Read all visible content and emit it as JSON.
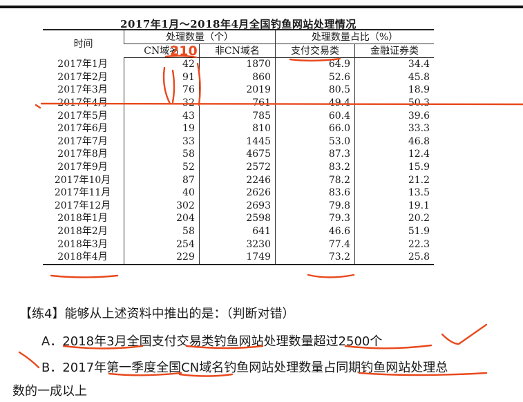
{
  "table": {
    "title": "2017年1月～2018年4月全国钓鱼网站处理情况",
    "headers": {
      "time": "时间",
      "group_count": "处理数量（个）",
      "group_share": "处理数量占比（%）",
      "cn": "CN域名",
      "non_cn": "非CN域名",
      "payment": "支付交易类",
      "finance": "金融证券类"
    },
    "rows": [
      {
        "time": "2017年1月",
        "cn": "42",
        "non_cn": "1870",
        "payment": "64.9",
        "finance": "34.4"
      },
      {
        "time": "2017年2月",
        "cn": "91",
        "non_cn": "860",
        "payment": "52.6",
        "finance": "45.8"
      },
      {
        "time": "2017年3月",
        "cn": "76",
        "non_cn": "2019",
        "payment": "80.5",
        "finance": "18.9"
      },
      {
        "time": "2017年4月",
        "cn": "32",
        "non_cn": "761",
        "payment": "49.4",
        "finance": "50.3"
      },
      {
        "time": "2017年5月",
        "cn": "43",
        "non_cn": "785",
        "payment": "60.4",
        "finance": "39.6"
      },
      {
        "time": "2017年6月",
        "cn": "19",
        "non_cn": "810",
        "payment": "66.0",
        "finance": "33.3"
      },
      {
        "time": "2017年7月",
        "cn": "33",
        "non_cn": "1445",
        "payment": "53.0",
        "finance": "46.8"
      },
      {
        "time": "2017年8月",
        "cn": "58",
        "non_cn": "4675",
        "payment": "87.3",
        "finance": "12.4"
      },
      {
        "time": "2017年9月",
        "cn": "52",
        "non_cn": "2572",
        "payment": "83.2",
        "finance": "15.9"
      },
      {
        "time": "2017年10月",
        "cn": "87",
        "non_cn": "2246",
        "payment": "78.2",
        "finance": "21.2"
      },
      {
        "time": "2017年11月",
        "cn": "40",
        "non_cn": "2626",
        "payment": "83.6",
        "finance": "13.5"
      },
      {
        "time": "2017年12月",
        "cn": "302",
        "non_cn": "2693",
        "payment": "79.8",
        "finance": "19.1"
      },
      {
        "time": "2018年1月",
        "cn": "204",
        "non_cn": "2598",
        "payment": "79.3",
        "finance": "20.2"
      },
      {
        "time": "2018年2月",
        "cn": "58",
        "non_cn": "641",
        "payment": "46.6",
        "finance": "51.9"
      },
      {
        "time": "2018年3月",
        "cn": "254",
        "non_cn": "3230",
        "payment": "77.4",
        "finance": "22.3"
      },
      {
        "time": "2018年4月",
        "cn": "229",
        "non_cn": "1749",
        "payment": "73.2",
        "finance": "25.8"
      }
    ]
  },
  "annotation": {
    "handwritten_sum": "210"
  },
  "question": {
    "stem": "【练4】能够从上述资料中推出的是：（判断对错）",
    "option_a": "A．2018年3月全国支付交易类钓鱼网站处理数量超过2500个",
    "option_b_line1": "B．2017年第一季度全国CN域名钓鱼网站处理数量占同期钓鱼网站处理总",
    "option_b_line2": "数的一成以上"
  },
  "colors": {
    "ink": "#e8491d",
    "text": "#1a1a1a"
  }
}
